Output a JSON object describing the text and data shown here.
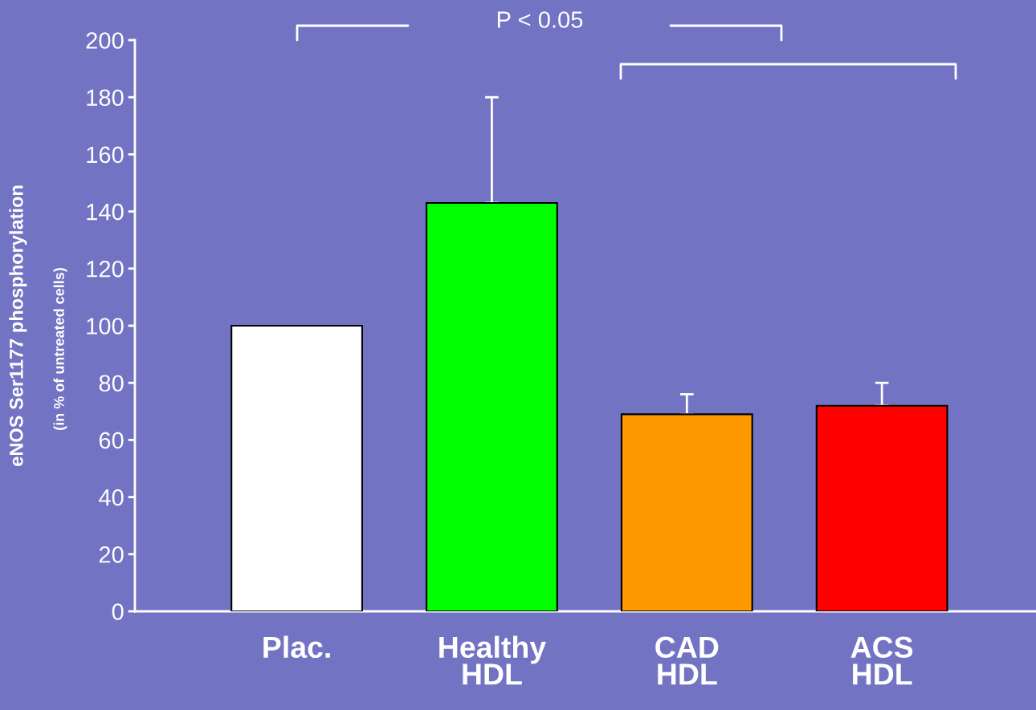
{
  "chart_data": {
    "type": "bar",
    "categories": [
      "Plac.",
      "Healthy\nHDL",
      "CAD\nHDL",
      "ACS\nHDL"
    ],
    "values": [
      100,
      143,
      69,
      72
    ],
    "colors": [
      "#ffffff",
      "#00ff00",
      "#ff9900",
      "#ff0000"
    ],
    "errors": [
      null,
      [
        143,
        180
      ],
      [
        69,
        76
      ],
      [
        72,
        80
      ]
    ],
    "ylabel": "eNOS Ser1177 phosphorylation",
    "annotations": [
      "(in % of untreated cells)",
      "P < 0.05"
    ],
    "ylim": [
      0,
      200
    ],
    "yticks": [
      0,
      20,
      40,
      60,
      80,
      100,
      120,
      140,
      160,
      180,
      200
    ],
    "grid": false
  }
}
